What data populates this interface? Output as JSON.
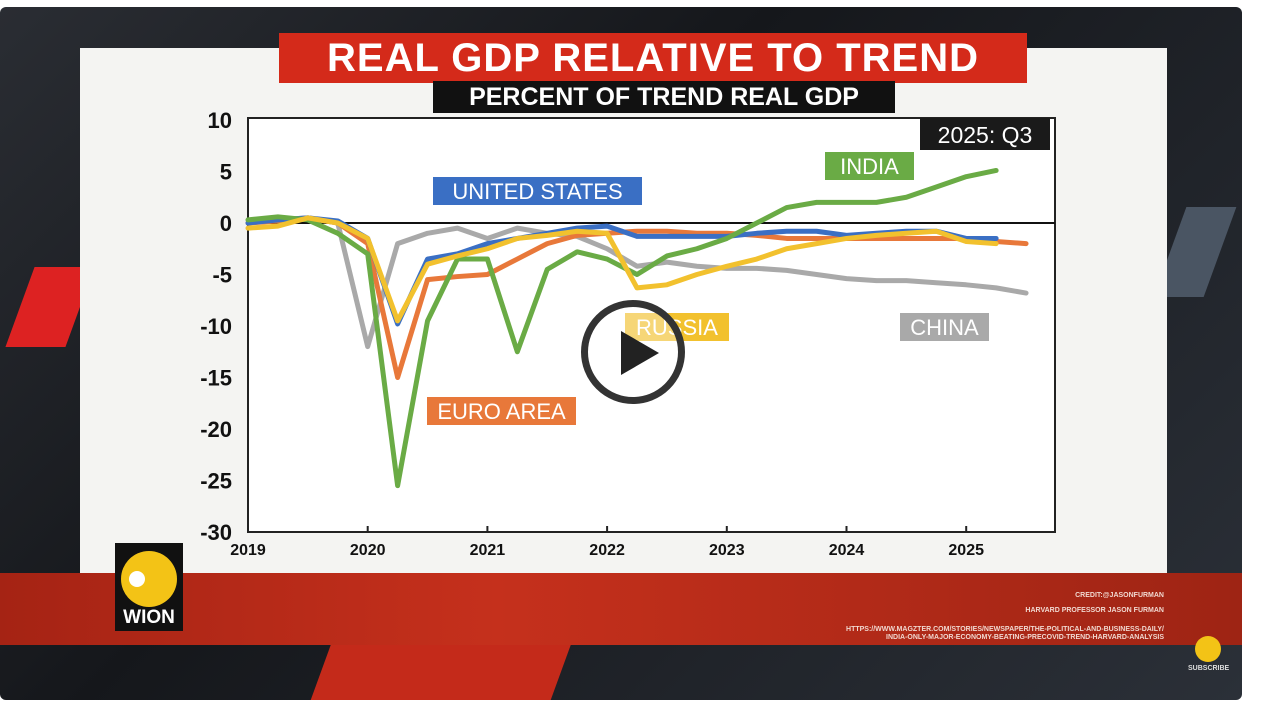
{
  "video": {
    "title": "REAL GDP RELATIVE TO TREND",
    "subtitle": "PERCENT OF TREND REAL GDP",
    "badge": "2025: Q3",
    "credits": [
      "CREDIT:@JASONFURMAN",
      "HARVARD PROFESSOR JASON FURMAN",
      "HTTPS://WWW.MAGZTER.COM/STORIES/NEWSPAPER/THE-POLITICAL-AND-BUSINESS-DAILY/",
      "INDIA-ONLY-MAJOR-ECONOMY-BEATING-PRECOVID-TREND-HARVARD-ANALYSIS"
    ],
    "logo_text": "WION",
    "subscribe_label": "SUBSCRIBE",
    "play_icon": "play-icon"
  },
  "chart_data": {
    "type": "line",
    "title": "REAL GDP RELATIVE TO TREND",
    "subtitle": "PERCENT OF TREND REAL GDP",
    "annotation": "2025: Q3",
    "xlim": [
      2019,
      2025.75
    ],
    "ylim": [
      -30,
      10
    ],
    "xticks": [
      "2019",
      "2020",
      "2021",
      "2022",
      "2023",
      "2024",
      "2025"
    ],
    "yticks": [
      "10",
      "5",
      "0",
      "-5",
      "-10",
      "-15",
      "-20",
      "-25",
      "-30"
    ],
    "reference_line": 0,
    "grid": false,
    "series": [
      {
        "name": "UNITED STATES",
        "color": "#3a6fc4",
        "x_start": 2019,
        "step": 0.25,
        "values": [
          0,
          0.3,
          0.5,
          0.2,
          -1.5,
          -9.8,
          -3.5,
          -3,
          -2,
          -1.5,
          -1,
          -0.5,
          -0.3,
          -1.3,
          -1.3,
          -1.3,
          -1.3,
          -1,
          -0.8,
          -0.8,
          -1.2,
          -1,
          -0.8,
          -0.8,
          -1.5,
          -1.5
        ]
      },
      {
        "name": "EURO AREA",
        "color": "#e8783a",
        "x_start": 2019,
        "step": 0.25,
        "values": [
          0,
          0.2,
          0.5,
          0,
          -2,
          -15,
          -5.5,
          -5.2,
          -5,
          -3.5,
          -2,
          -1.2,
          -1,
          -0.8,
          -0.8,
          -1,
          -1,
          -1.2,
          -1.5,
          -1.5,
          -1.5,
          -1.5,
          -1.5,
          -1.5,
          -1.5,
          -1.8,
          -2
        ]
      },
      {
        "name": "CHINA",
        "color": "#a9a9a9",
        "x_start": 2019,
        "step": 0.25,
        "values": [
          0,
          0.3,
          0.5,
          0,
          -12,
          -2,
          -1,
          -0.5,
          -1.5,
          -0.5,
          -1,
          -1.3,
          -2.5,
          -4.2,
          -3.8,
          -4.2,
          -4.4,
          -4.4,
          -4.6,
          -5,
          -5.4,
          -5.6,
          -5.6,
          -5.8,
          -6,
          -6.3,
          -6.8
        ]
      },
      {
        "name": "RUSSIA",
        "color": "#f2c12e",
        "x_start": 2019,
        "step": 0.25,
        "values": [
          -0.5,
          -0.3,
          0.5,
          0,
          -1.5,
          -9.5,
          -4,
          -3.2,
          -2.5,
          -1.5,
          -1.2,
          -0.8,
          -1,
          -6.3,
          -6,
          -5,
          -4.2,
          -3.5,
          -2.5,
          -2,
          -1.5,
          -1.2,
          -1,
          -0.8,
          -1.8,
          -2
        ]
      },
      {
        "name": "INDIA",
        "color": "#6aab45",
        "x_start": 2019,
        "step": 0.25,
        "values": [
          0.3,
          0.6,
          0.3,
          -1,
          -3,
          -25.5,
          -9.5,
          -3.5,
          -3.5,
          -12.5,
          -4.5,
          -2.8,
          -3.5,
          -5,
          -3.2,
          -2.5,
          -1.5,
          0,
          1.5,
          2,
          2,
          2,
          2.5,
          3.5,
          4.5,
          5.1
        ]
      }
    ]
  }
}
